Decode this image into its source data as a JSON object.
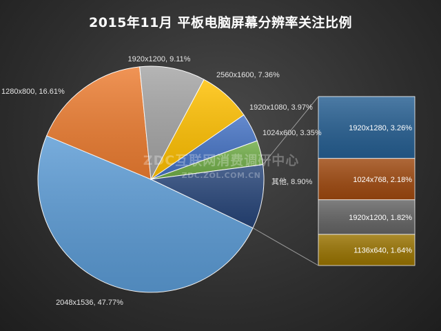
{
  "chart_data": {
    "type": "pie",
    "title": "2015年11月  平板电脑屏幕分辨率关注比例",
    "slices": [
      {
        "name": "2048x1536",
        "value": 47.77,
        "label": "2048x1536, 47.77%",
        "color": "#5b9bd5"
      },
      {
        "name": "1280x800",
        "value": 16.61,
        "label": "1280x800, 16.61%",
        "color": "#ed7d31"
      },
      {
        "name": "1920x1200",
        "value": 9.11,
        "label": "1920x1200, 9.11%",
        "color": "#a5a5a5"
      },
      {
        "name": "2560x1600",
        "value": 7.36,
        "label": "2560x1600, 7.36%",
        "color": "#ffc000"
      },
      {
        "name": "1920x1080",
        "value": 3.97,
        "label": "1920x1080, 3.97%",
        "color": "#4472c4"
      },
      {
        "name": "1024x600",
        "value": 3.35,
        "label": "1024x600, 3.35%",
        "color": "#70ad47"
      },
      {
        "name": "其他",
        "value": 8.9,
        "label": "其他, 8.90%",
        "color": "#264478"
      }
    ],
    "breakdown": {
      "of": "其他",
      "items": [
        {
          "name": "1920x1280",
          "value": 3.26,
          "label": "1920x1280, 3.26%",
          "color": "#255e91"
        },
        {
          "name": "1024x768",
          "value": 2.18,
          "label": "1024x768, 2.18%",
          "color": "#9e480e"
        },
        {
          "name": "1920x1200",
          "value": 1.82,
          "label": "1920x1200, 1.82%",
          "color": "#636363"
        },
        {
          "name": "1136x640",
          "value": 1.64,
          "label": "1136x640, 1.64%",
          "color": "#997300"
        }
      ]
    }
  },
  "watermark": {
    "line1": "ZDC互联网消费调研中心",
    "line2": "ZDC.ZOL.COM.CN"
  }
}
